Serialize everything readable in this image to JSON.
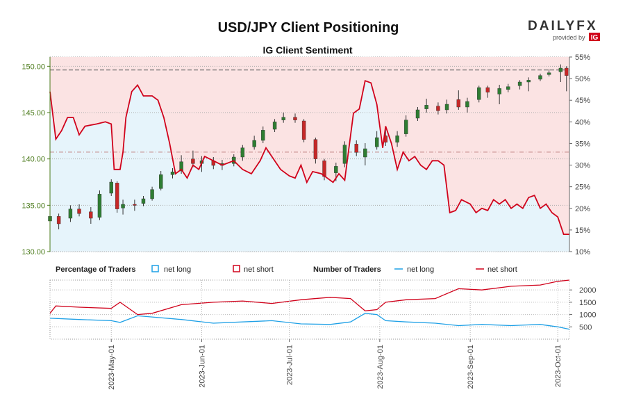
{
  "chart_data": {
    "type": "line",
    "title": "USD/JPY Client Positioning",
    "subtitle": "IG Client Sentiment",
    "brand": {
      "name": "DAILYFX",
      "tagline": "provided by",
      "provider": "IG"
    },
    "colors": {
      "net_long": "#1ea0e6",
      "net_short": "#d0021b",
      "long_fill": "#e6f4fb",
      "short_fill": "#fbe3e3",
      "candle_up": "#2e7d32",
      "candle_down": "#c62828",
      "price_axis": "#4a7a1a"
    },
    "x_range": [
      "2023-04-10",
      "2023-10-05"
    ],
    "x_ticks": [
      "2023-May-01",
      "2023-Jun-01",
      "2023-Jul-01",
      "2023-Aug-01",
      "2023-Sep-01",
      "2023-Oct-01"
    ],
    "price_axis": {
      "ylim": [
        130,
        151
      ],
      "ticks": [
        "130.00",
        "135.00",
        "140.00",
        "145.00",
        "150.00"
      ],
      "current_price": 149.6
    },
    "sentiment_axis": {
      "ylim": [
        10,
        55
      ],
      "ticks": [
        "10%",
        "15%",
        "20%",
        "25%",
        "30%",
        "35%",
        "40%",
        "45%",
        "50%",
        "55%"
      ],
      "average_net_long": 33
    },
    "legend": {
      "percentage_title": "Percentage of Traders",
      "number_title": "Number of Traders",
      "net_long": "net long",
      "net_short": "net short"
    },
    "traders_axis": {
      "ylim": [
        0,
        2400
      ],
      "ticks": [
        "500",
        "1000",
        "1500",
        "2000"
      ]
    },
    "net_long_pct": [
      [
        "2023-04-10",
        47
      ],
      [
        "2023-04-12",
        36
      ],
      [
        "2023-04-14",
        38
      ],
      [
        "2023-04-16",
        41
      ],
      [
        "2023-04-18",
        41
      ],
      [
        "2023-04-20",
        37
      ],
      [
        "2023-04-22",
        39
      ],
      [
        "2023-04-26",
        39.5
      ],
      [
        "2023-04-29",
        40
      ],
      [
        "2023-05-01",
        39.5
      ],
      [
        "2023-05-02",
        29
      ],
      [
        "2023-05-04",
        29
      ],
      [
        "2023-05-05",
        33
      ],
      [
        "2023-05-06",
        41
      ],
      [
        "2023-05-08",
        47
      ],
      [
        "2023-05-10",
        48.5
      ],
      [
        "2023-05-12",
        46
      ],
      [
        "2023-05-15",
        46
      ],
      [
        "2023-05-17",
        45
      ],
      [
        "2023-05-19",
        41
      ],
      [
        "2023-05-21",
        35
      ],
      [
        "2023-05-23",
        28
      ],
      [
        "2023-05-25",
        29
      ],
      [
        "2023-05-27",
        27
      ],
      [
        "2023-05-29",
        30
      ],
      [
        "2023-05-31",
        29
      ],
      [
        "2023-06-02",
        32
      ],
      [
        "2023-06-05",
        31
      ],
      [
        "2023-06-08",
        30
      ],
      [
        "2023-06-12",
        31
      ],
      [
        "2023-06-15",
        29
      ],
      [
        "2023-06-18",
        28
      ],
      [
        "2023-06-21",
        31
      ],
      [
        "2023-06-23",
        34
      ],
      [
        "2023-06-25",
        32
      ],
      [
        "2023-06-28",
        29
      ],
      [
        "2023-07-01",
        27.5
      ],
      [
        "2023-07-03",
        27
      ],
      [
        "2023-07-05",
        30
      ],
      [
        "2023-07-07",
        26
      ],
      [
        "2023-07-09",
        28.5
      ],
      [
        "2023-07-12",
        28
      ],
      [
        "2023-07-14",
        27
      ],
      [
        "2023-07-16",
        26
      ],
      [
        "2023-07-18",
        28
      ],
      [
        "2023-07-20",
        26.5
      ],
      [
        "2023-07-23",
        42
      ],
      [
        "2023-07-25",
        43
      ],
      [
        "2023-07-27",
        49.5
      ],
      [
        "2023-07-29",
        49
      ],
      [
        "2023-07-31",
        44
      ],
      [
        "2023-08-02",
        34
      ],
      [
        "2023-08-03",
        39
      ],
      [
        "2023-08-05",
        35
      ],
      [
        "2023-08-07",
        29
      ],
      [
        "2023-08-09",
        33
      ],
      [
        "2023-08-11",
        31
      ],
      [
        "2023-08-13",
        32
      ],
      [
        "2023-08-15",
        30
      ],
      [
        "2023-08-17",
        29
      ],
      [
        "2023-08-19",
        31
      ],
      [
        "2023-08-21",
        31
      ],
      [
        "2023-08-23",
        30
      ],
      [
        "2023-08-25",
        19
      ],
      [
        "2023-08-27",
        19.5
      ],
      [
        "2023-08-29",
        22
      ],
      [
        "2023-09-01",
        21
      ],
      [
        "2023-09-03",
        19
      ],
      [
        "2023-09-05",
        20
      ],
      [
        "2023-09-07",
        19.5
      ],
      [
        "2023-09-09",
        22
      ],
      [
        "2023-09-11",
        21
      ],
      [
        "2023-09-13",
        22
      ],
      [
        "2023-09-15",
        20
      ],
      [
        "2023-09-17",
        21
      ],
      [
        "2023-09-19",
        20
      ],
      [
        "2023-09-21",
        22.5
      ],
      [
        "2023-09-23",
        23
      ],
      [
        "2023-09-25",
        20
      ],
      [
        "2023-09-27",
        21
      ],
      [
        "2023-09-29",
        19
      ],
      [
        "2023-10-01",
        18
      ],
      [
        "2023-10-03",
        14
      ],
      [
        "2023-10-05",
        14
      ]
    ],
    "net_short_pct_note": "",
    "traders_long": [
      [
        "2023-04-10",
        850
      ],
      [
        "2023-04-20",
        800
      ],
      [
        "2023-05-01",
        750
      ],
      [
        "2023-05-04",
        680
      ],
      [
        "2023-05-10",
        950
      ],
      [
        "2023-05-15",
        900
      ],
      [
        "2023-05-25",
        800
      ],
      [
        "2023-06-05",
        650
      ],
      [
        "2023-06-15",
        700
      ],
      [
        "2023-06-25",
        750
      ],
      [
        "2023-07-05",
        620
      ],
      [
        "2023-07-15",
        600
      ],
      [
        "2023-07-22",
        700
      ],
      [
        "2023-07-27",
        1050
      ],
      [
        "2023-07-31",
        1000
      ],
      [
        "2023-08-03",
        750
      ],
      [
        "2023-08-10",
        700
      ],
      [
        "2023-08-20",
        650
      ],
      [
        "2023-08-28",
        550
      ],
      [
        "2023-09-05",
        600
      ],
      [
        "2023-09-15",
        550
      ],
      [
        "2023-09-25",
        600
      ],
      [
        "2023-10-01",
        500
      ],
      [
        "2023-10-05",
        400
      ]
    ],
    "traders_short": [
      [
        "2023-04-10",
        1050
      ],
      [
        "2023-04-12",
        1350
      ],
      [
        "2023-04-20",
        1300
      ],
      [
        "2023-05-01",
        1250
      ],
      [
        "2023-05-04",
        1500
      ],
      [
        "2023-05-10",
        1000
      ],
      [
        "2023-05-15",
        1050
      ],
      [
        "2023-05-25",
        1400
      ],
      [
        "2023-06-05",
        1500
      ],
      [
        "2023-06-15",
        1550
      ],
      [
        "2023-06-25",
        1450
      ],
      [
        "2023-07-05",
        1600
      ],
      [
        "2023-07-15",
        1700
      ],
      [
        "2023-07-22",
        1650
      ],
      [
        "2023-07-27",
        1150
      ],
      [
        "2023-07-31",
        1200
      ],
      [
        "2023-08-03",
        1500
      ],
      [
        "2023-08-10",
        1600
      ],
      [
        "2023-08-20",
        1650
      ],
      [
        "2023-08-28",
        2050
      ],
      [
        "2023-09-05",
        2000
      ],
      [
        "2023-09-15",
        2150
      ],
      [
        "2023-09-25",
        2200
      ],
      [
        "2023-10-01",
        2350
      ],
      [
        "2023-10-05",
        2400
      ]
    ],
    "price_candles": [
      [
        "2023-04-10",
        133.3,
        133.8,
        134.0,
        132.8
      ],
      [
        "2023-04-13",
        133.8,
        133.0,
        134.1,
        132.4
      ],
      [
        "2023-04-17",
        133.6,
        134.6,
        135.0,
        133.2
      ],
      [
        "2023-04-20",
        134.6,
        134.1,
        135.1,
        133.8
      ],
      [
        "2023-04-24",
        134.3,
        133.6,
        134.8,
        133.0
      ],
      [
        "2023-04-27",
        133.7,
        136.2,
        136.6,
        133.4
      ],
      [
        "2023-05-01",
        136.3,
        137.5,
        137.8,
        136.0
      ],
      [
        "2023-05-03",
        137.4,
        134.6,
        137.6,
        134.2
      ],
      [
        "2023-05-05",
        134.7,
        135.1,
        135.6,
        134.0
      ],
      [
        "2023-05-09",
        135.1,
        135.0,
        135.6,
        134.4
      ],
      [
        "2023-05-12",
        135.2,
        135.7,
        136.0,
        134.9
      ],
      [
        "2023-05-15",
        135.7,
        136.7,
        137.0,
        135.5
      ],
      [
        "2023-05-18",
        136.8,
        138.3,
        138.7,
        136.6
      ],
      [
        "2023-05-22",
        138.3,
        138.6,
        139.0,
        137.9
      ],
      [
        "2023-05-25",
        138.7,
        139.7,
        140.4,
        138.4
      ],
      [
        "2023-05-29",
        140.0,
        139.5,
        140.9,
        139.1
      ],
      [
        "2023-06-01",
        139.5,
        139.8,
        140.3,
        138.6
      ],
      [
        "2023-06-05",
        139.8,
        139.3,
        140.2,
        138.9
      ],
      [
        "2023-06-08",
        139.3,
        139.5,
        139.9,
        138.8
      ],
      [
        "2023-06-12",
        139.5,
        140.2,
        140.5,
        139.2
      ],
      [
        "2023-06-15",
        140.2,
        141.2,
        141.5,
        139.8
      ],
      [
        "2023-06-19",
        141.3,
        142.0,
        142.5,
        141.0
      ],
      [
        "2023-06-22",
        142.0,
        143.1,
        143.5,
        141.7
      ],
      [
        "2023-06-26",
        143.2,
        144.0,
        144.3,
        142.9
      ],
      [
        "2023-06-29",
        144.2,
        144.5,
        145.0,
        143.9
      ],
      [
        "2023-07-03",
        144.5,
        144.2,
        144.9,
        143.9
      ],
      [
        "2023-07-06",
        144.1,
        142.1,
        144.3,
        141.8
      ],
      [
        "2023-07-10",
        142.1,
        140.0,
        142.3,
        139.5
      ],
      [
        "2023-07-13",
        139.8,
        138.1,
        140.0,
        137.7
      ],
      [
        "2023-07-17",
        138.5,
        139.2,
        139.6,
        137.6
      ],
      [
        "2023-07-20",
        139.5,
        141.5,
        141.9,
        139.1
      ],
      [
        "2023-07-24",
        141.6,
        140.7,
        142.0,
        140.3
      ],
      [
        "2023-07-27",
        140.2,
        141.1,
        141.7,
        139.3
      ],
      [
        "2023-07-31",
        141.3,
        142.3,
        143.0,
        141.0
      ],
      [
        "2023-08-03",
        142.5,
        141.8,
        143.5,
        141.4
      ],
      [
        "2023-08-07",
        141.8,
        142.5,
        143.0,
        141.3
      ],
      [
        "2023-08-10",
        142.7,
        144.2,
        144.7,
        142.4
      ],
      [
        "2023-08-14",
        144.4,
        145.3,
        145.6,
        144.1
      ],
      [
        "2023-08-17",
        145.4,
        145.8,
        146.5,
        145.0
      ],
      [
        "2023-08-21",
        145.7,
        145.2,
        146.1,
        144.8
      ],
      [
        "2023-08-24",
        145.3,
        145.9,
        146.4,
        144.9
      ],
      [
        "2023-08-28",
        146.4,
        145.6,
        147.4,
        145.3
      ],
      [
        "2023-08-31",
        145.6,
        146.2,
        146.6,
        145.0
      ],
      [
        "2023-09-04",
        146.4,
        147.7,
        147.9,
        146.1
      ],
      [
        "2023-09-07",
        147.7,
        147.2,
        147.9,
        146.6
      ],
      [
        "2023-09-11",
        147.0,
        147.6,
        148.0,
        145.9
      ],
      [
        "2023-09-14",
        147.5,
        147.8,
        148.1,
        147.2
      ],
      [
        "2023-09-18",
        147.9,
        148.3,
        148.5,
        147.5
      ],
      [
        "2023-09-21",
        148.3,
        148.5,
        148.8,
        147.3
      ],
      [
        "2023-09-25",
        148.6,
        149.0,
        149.2,
        148.4
      ],
      [
        "2023-09-28",
        149.1,
        149.3,
        149.7,
        148.9
      ],
      [
        "2023-10-02",
        149.4,
        149.8,
        150.2,
        148.3
      ],
      [
        "2023-10-04",
        149.8,
        149.0,
        150.0,
        147.3
      ]
    ]
  }
}
